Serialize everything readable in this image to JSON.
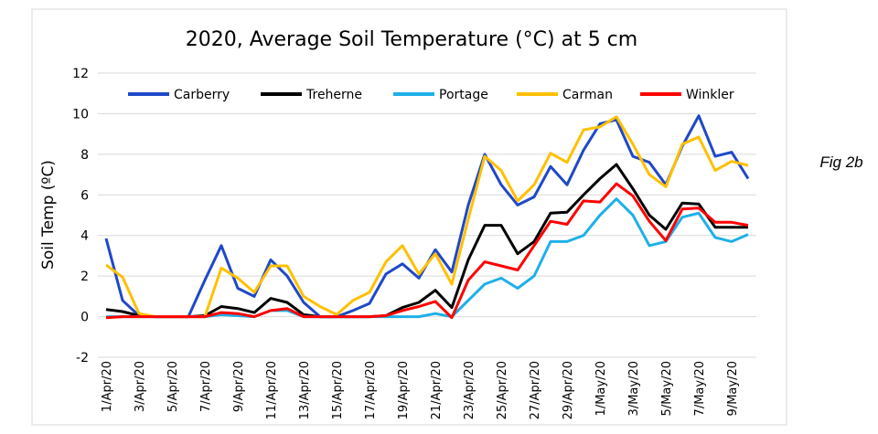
{
  "chart_data": {
    "type": "line",
    "title": "2020, Average Soil Temperature (°C) at 5 cm",
    "ylabel": "Soil Temp (ºC)",
    "annotation": "Fig 2b",
    "categories": [
      "1/Apr/20",
      null,
      "3/Apr/20",
      null,
      "5/Apr/20",
      null,
      "7/Apr/20",
      null,
      "9/Apr/20",
      null,
      "11/Apr/20",
      null,
      "13/Apr/20",
      null,
      "15/Apr/20",
      null,
      "17/Apr/20",
      null,
      "19/Apr/20",
      null,
      "21/Apr/20",
      null,
      "23/Apr/20",
      null,
      "25/Apr/20",
      null,
      "27/Apr/20",
      null,
      "29/Apr/20",
      null,
      "1/May/20",
      null,
      "3/May/20",
      null,
      "5/May/20",
      null,
      "7/May/20",
      null,
      "9/May/20",
      null
    ],
    "series": [
      {
        "name": "Carberry",
        "color": "#1f48c8",
        "values": [
          3.85,
          0.8,
          0.05,
          0,
          0,
          0,
          1.8,
          3.5,
          1.4,
          1.0,
          2.8,
          2.0,
          0.7,
          0,
          0,
          0.3,
          0.65,
          2.1,
          2.6,
          1.9,
          3.3,
          2.2,
          5.5,
          8.0,
          6.5,
          5.5,
          5.9,
          7.4,
          6.5,
          8.2,
          9.5,
          9.7,
          7.9,
          7.6,
          6.5,
          8.4,
          9.9,
          7.9,
          8.1,
          6.8
        ]
      },
      {
        "name": "Treherne",
        "color": "#000000",
        "values": [
          0.35,
          0.25,
          0.05,
          0,
          0,
          0,
          0.05,
          0.5,
          0.4,
          0.2,
          0.9,
          0.7,
          0.1,
          0,
          0,
          0,
          0,
          0.05,
          0.45,
          0.7,
          1.3,
          0.45,
          2.8,
          4.5,
          4.5,
          3.1,
          3.7,
          5.1,
          5.15,
          6.0,
          6.8,
          7.5,
          6.3,
          5.0,
          4.3,
          5.6,
          5.55,
          4.4,
          4.4,
          4.4
        ]
      },
      {
        "name": "Portage",
        "color": "#1eb0e8",
        "values": [
          0,
          0,
          0,
          0,
          0,
          0,
          0,
          0.1,
          0.05,
          0,
          0.3,
          0.3,
          0,
          0,
          0,
          0,
          0,
          0,
          0,
          0,
          0.15,
          0,
          0.8,
          1.6,
          1.9,
          1.4,
          2.0,
          3.7,
          3.7,
          4.0,
          5.0,
          5.8,
          5.0,
          3.5,
          3.7,
          4.9,
          5.1,
          3.9,
          3.7,
          4.05
        ]
      },
      {
        "name": "Carman",
        "color": "#ffc000",
        "values": [
          2.55,
          1.95,
          0.15,
          0,
          0,
          0,
          0,
          2.4,
          1.9,
          1.2,
          2.5,
          2.5,
          1.0,
          0.5,
          0.1,
          0.8,
          1.2,
          2.7,
          3.5,
          2.1,
          3.1,
          1.6,
          4.8,
          7.9,
          7.2,
          5.7,
          6.5,
          8.05,
          7.6,
          9.2,
          9.35,
          9.85,
          8.5,
          7.0,
          6.4,
          8.5,
          8.85,
          7.2,
          7.65,
          7.45
        ]
      },
      {
        "name": "Winkler",
        "color": "#ff0000",
        "values": [
          -0.05,
          0,
          0,
          0,
          0,
          0,
          0,
          0.2,
          0.15,
          0,
          0.3,
          0.4,
          0,
          0,
          0,
          0,
          0,
          0.05,
          0.3,
          0.5,
          0.75,
          -0.05,
          1.8,
          2.7,
          2.5,
          2.3,
          3.5,
          4.7,
          4.55,
          5.7,
          5.65,
          6.55,
          5.95,
          4.7,
          3.75,
          5.3,
          5.35,
          4.65,
          4.65,
          4.5
        ]
      }
    ],
    "ylim": [
      -2,
      12
    ],
    "yticks": [
      -2,
      0,
      2,
      4,
      6,
      8,
      10,
      12
    ],
    "grid": true,
    "legend": "top"
  }
}
